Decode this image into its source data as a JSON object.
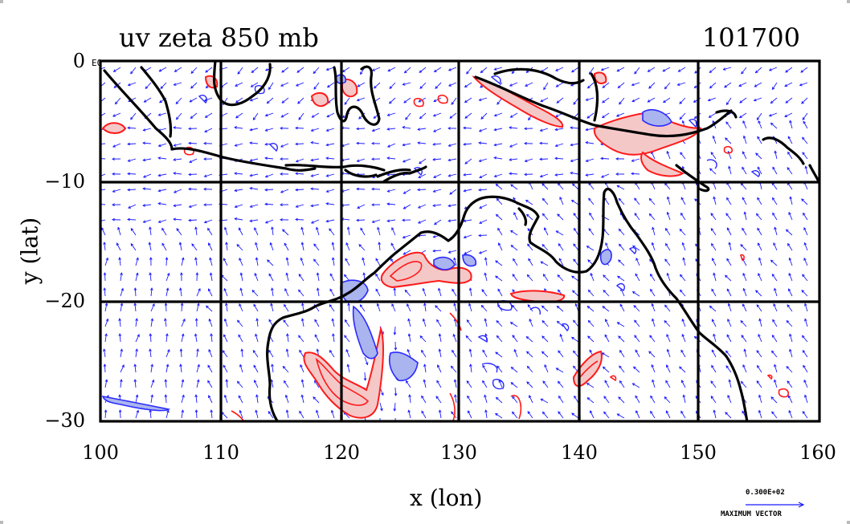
{
  "title": {
    "left": "uv zeta 850 mb",
    "right": "101700"
  },
  "axes": {
    "xlabel": "x (lon)",
    "ylabel": "y (lat)",
    "xticks": [
      "100",
      "110",
      "120",
      "130",
      "140",
      "150",
      "160"
    ],
    "yticks": [
      "0",
      "−10",
      "−20",
      "−30"
    ],
    "xlim": [
      100,
      160
    ],
    "ylim": [
      -30,
      0
    ],
    "grid": true,
    "ytop_exponent": "E0"
  },
  "reference_vector": {
    "value": "0.300E+02",
    "label": "MAXIMUM VECTOR"
  },
  "colors": {
    "vectors": "#1a1aff",
    "positive_contour": "#ff1a1a",
    "positive_fill": "#f5c8c8",
    "negative_contour": "#2a2aff",
    "negative_fill": "#aab4ee",
    "coast": "#000000"
  }
}
